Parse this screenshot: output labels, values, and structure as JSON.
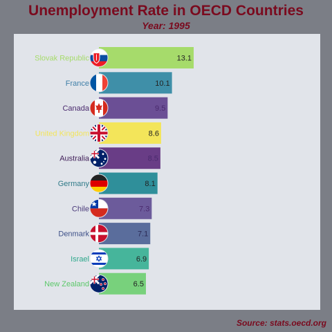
{
  "chart_data": {
    "type": "bar",
    "orientation": "horizontal",
    "title": "Unemployment Rate in OECD Countries",
    "subtitle": "Year: 1995",
    "source": "Source: stats.oecd.org",
    "xlabel": "",
    "ylabel": "",
    "grid": false,
    "xlim": [
      0,
      13.1
    ],
    "categories": [
      "Slovak Republic",
      "France",
      "Canada",
      "United Kingdom",
      "Australia",
      "Germany",
      "Chile",
      "Denmark",
      "Israel",
      "New Zealand"
    ],
    "values": [
      13.1,
      10.1,
      9.5,
      8.6,
      8.5,
      8.1,
      7.3,
      7.1,
      6.9,
      6.5
    ],
    "value_labels": [
      "13.1",
      "10.1",
      "9.5",
      "8.6",
      "8.5",
      "8.1",
      "7.3",
      "7.1",
      "6.9",
      "6.5"
    ],
    "colors": [
      "#a6db6b",
      "#3f8fa8",
      "#6b4f95",
      "#f3e55a",
      "#693d86",
      "#2f8f9a",
      "#6c5b9b",
      "#5a6d9c",
      "#46b59b",
      "#78d17c"
    ],
    "label_colors": [
      "#a6db6b",
      "#3f7fa8",
      "#4a2a6e",
      "#f3e55a",
      "#3e1c57",
      "#2f7a88",
      "#4a3a7a",
      "#3d5088",
      "#2ea88c",
      "#5cc86a"
    ],
    "value_label_colors": [
      "#222222",
      "#222222",
      "#4a2a6e",
      "#222222",
      "#4a2a6e",
      "#222222",
      "#4a2a6e",
      "#2a2a55",
      "#222222",
      "#222222"
    ],
    "flag_icons": [
      "slovakia-flag-icon",
      "france-flag-icon",
      "canada-flag-icon",
      "uk-flag-icon",
      "australia-flag-icon",
      "germany-flag-icon",
      "chile-flag-icon",
      "denmark-flag-icon",
      "israel-flag-icon",
      "new-zealand-flag-icon"
    ]
  }
}
